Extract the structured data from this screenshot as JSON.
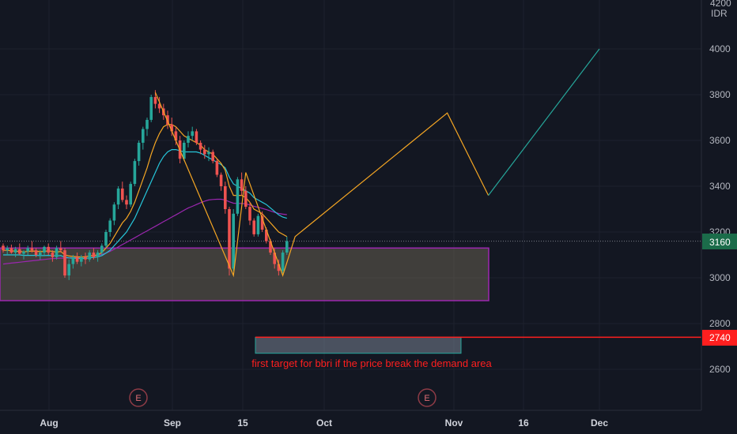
{
  "chart_data": {
    "type": "candlestick",
    "currency": "IDR",
    "y_axis_top_partial_label": "4200",
    "y_ticks": [
      2600,
      2800,
      3000,
      3200,
      3400,
      3600,
      3800,
      4000
    ],
    "ylim": [
      2400,
      4200
    ],
    "x_ticks": [
      "Aug",
      "Sep",
      "15",
      "Oct",
      "Nov",
      "16",
      "Dec"
    ],
    "last_price": "3160",
    "target_price": "2740",
    "annotation": "first target for bbri if the price break the demand area",
    "earnings_markers": [
      "E",
      "E"
    ],
    "demand_zone": {
      "low": 2900,
      "high": 3130
    },
    "target_zone": {
      "low": 2670,
      "high": 2740
    },
    "candles": [
      [
        3140,
        3150,
        3110,
        3120
      ],
      [
        3120,
        3140,
        3100,
        3130
      ],
      [
        3130,
        3145,
        3105,
        3110
      ],
      [
        3110,
        3135,
        3090,
        3125
      ],
      [
        3125,
        3150,
        3100,
        3105
      ],
      [
        3105,
        3120,
        3080,
        3115
      ],
      [
        3115,
        3140,
        3100,
        3130
      ],
      [
        3130,
        3160,
        3110,
        3120
      ],
      [
        3120,
        3130,
        3090,
        3100
      ],
      [
        3100,
        3120,
        3080,
        3110
      ],
      [
        3110,
        3140,
        3100,
        3135
      ],
      [
        3135,
        3150,
        3100,
        3110
      ],
      [
        3110,
        3120,
        3070,
        3090
      ],
      [
        3090,
        3140,
        3080,
        3130
      ],
      [
        3130,
        3160,
        3110,
        3120
      ],
      [
        3120,
        3130,
        3000,
        3010
      ],
      [
        3010,
        3080,
        2990,
        3060
      ],
      [
        3060,
        3100,
        3040,
        3090
      ],
      [
        3090,
        3110,
        3060,
        3070
      ],
      [
        3070,
        3100,
        3050,
        3090
      ],
      [
        3090,
        3110,
        3060,
        3080
      ],
      [
        3080,
        3120,
        3070,
        3110
      ],
      [
        3110,
        3130,
        3080,
        3090
      ],
      [
        3090,
        3120,
        3070,
        3110
      ],
      [
        3110,
        3150,
        3100,
        3140
      ],
      [
        3140,
        3210,
        3130,
        3200
      ],
      [
        3200,
        3260,
        3180,
        3250
      ],
      [
        3250,
        3330,
        3230,
        3320
      ],
      [
        3320,
        3400,
        3300,
        3390
      ],
      [
        3390,
        3420,
        3330,
        3340
      ],
      [
        3340,
        3360,
        3300,
        3320
      ],
      [
        3320,
        3420,
        3310,
        3410
      ],
      [
        3410,
        3520,
        3400,
        3510
      ],
      [
        3510,
        3600,
        3490,
        3590
      ],
      [
        3590,
        3660,
        3560,
        3650
      ],
      [
        3650,
        3700,
        3620,
        3690
      ],
      [
        3690,
        3800,
        3680,
        3790
      ],
      [
        3790,
        3820,
        3740,
        3760
      ],
      [
        3760,
        3790,
        3720,
        3740
      ],
      [
        3740,
        3760,
        3690,
        3710
      ],
      [
        3710,
        3730,
        3650,
        3670
      ],
      [
        3670,
        3700,
        3620,
        3640
      ],
      [
        3640,
        3660,
        3580,
        3600
      ],
      [
        3600,
        3620,
        3500,
        3520
      ],
      [
        3520,
        3600,
        3510,
        3590
      ],
      [
        3590,
        3640,
        3570,
        3620
      ],
      [
        3620,
        3660,
        3600,
        3640
      ],
      [
        3640,
        3650,
        3580,
        3590
      ],
      [
        3590,
        3600,
        3540,
        3560
      ],
      [
        3560,
        3580,
        3520,
        3540
      ],
      [
        3540,
        3570,
        3510,
        3550
      ],
      [
        3550,
        3560,
        3500,
        3510
      ],
      [
        3510,
        3520,
        3440,
        3450
      ],
      [
        3450,
        3460,
        3380,
        3400
      ],
      [
        3400,
        3420,
        3280,
        3300
      ],
      [
        3300,
        3310,
        3010,
        3040
      ],
      [
        3040,
        3300,
        3030,
        3280
      ],
      [
        3280,
        3440,
        3270,
        3430
      ],
      [
        3430,
        3460,
        3360,
        3380
      ],
      [
        3380,
        3400,
        3300,
        3310
      ],
      [
        3310,
        3330,
        3230,
        3250
      ],
      [
        3250,
        3260,
        3180,
        3190
      ],
      [
        3190,
        3280,
        3180,
        3270
      ],
      [
        3270,
        3290,
        3200,
        3210
      ],
      [
        3210,
        3220,
        3150,
        3160
      ],
      [
        3160,
        3170,
        3100,
        3110
      ],
      [
        3110,
        3130,
        3040,
        3060
      ],
      [
        3060,
        3080,
        3010,
        3030
      ],
      [
        3030,
        3120,
        3020,
        3110
      ],
      [
        3110,
        3180,
        3100,
        3160
      ]
    ],
    "ma_fast": [
      3120,
      3120,
      3118,
      3116,
      3115,
      3113,
      3115,
      3117,
      3116,
      3114,
      3115,
      3118,
      3115,
      3112,
      3115,
      3100,
      3095,
      3093,
      3092,
      3090,
      3092,
      3095,
      3097,
      3100,
      3110,
      3130,
      3150,
      3180,
      3210,
      3240,
      3260,
      3290,
      3330,
      3380,
      3430,
      3480,
      3540,
      3590,
      3630,
      3660,
      3670,
      3670,
      3660,
      3640,
      3620,
      3610,
      3600,
      3590,
      3580,
      3560,
      3550,
      3540,
      3520,
      3500,
      3470,
      3400,
      3360,
      3360,
      3360,
      3350,
      3330,
      3300,
      3290,
      3280,
      3260,
      3240,
      3220,
      3200,
      3190,
      3180
    ],
    "ma_mid": [
      3100,
      3100,
      3100,
      3100,
      3100,
      3098,
      3098,
      3098,
      3098,
      3097,
      3097,
      3098,
      3097,
      3096,
      3097,
      3090,
      3087,
      3086,
      3085,
      3084,
      3085,
      3087,
      3089,
      3091,
      3097,
      3108,
      3120,
      3140,
      3160,
      3180,
      3200,
      3230,
      3260,
      3300,
      3340,
      3380,
      3420,
      3460,
      3500,
      3530,
      3550,
      3560,
      3560,
      3555,
      3550,
      3550,
      3550,
      3550,
      3545,
      3535,
      3525,
      3515,
      3505,
      3495,
      3480,
      3440,
      3410,
      3400,
      3390,
      3380,
      3370,
      3350,
      3340,
      3330,
      3320,
      3305,
      3290,
      3275,
      3265,
      3260
    ],
    "ma_slow": [
      3060,
      3062,
      3064,
      3066,
      3068,
      3070,
      3072,
      3074,
      3076,
      3078,
      3080,
      3082,
      3084,
      3085,
      3086,
      3086,
      3087,
      3088,
      3089,
      3090,
      3092,
      3094,
      3096,
      3098,
      3102,
      3108,
      3115,
      3125,
      3135,
      3145,
      3155,
      3165,
      3175,
      3185,
      3195,
      3205,
      3215,
      3225,
      3235,
      3245,
      3255,
      3265,
      3275,
      3285,
      3295,
      3305,
      3312,
      3320,
      3328,
      3335,
      3340,
      3342,
      3343,
      3343,
      3340,
      3332,
      3326,
      3325,
      3325,
      3323,
      3318,
      3312,
      3308,
      3303,
      3298,
      3292,
      3286,
      3281,
      3278,
      3276
    ],
    "zigzag_orange": [
      [
        37,
        3810
      ],
      [
        56,
        3010
      ],
      [
        59,
        3460
      ],
      [
        68,
        3010
      ],
      [
        71,
        3180
      ],
      [
        108,
        3720
      ],
      [
        118,
        3360
      ]
    ],
    "zigzag_teal": [
      [
        118,
        3360
      ],
      [
        145,
        4000
      ]
    ]
  }
}
